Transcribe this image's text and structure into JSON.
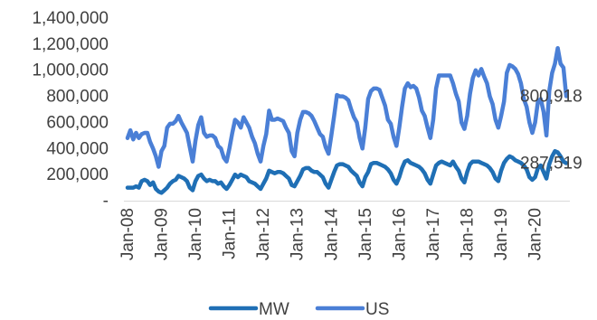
{
  "chart_data": {
    "type": "line",
    "title": "",
    "xlabel": "",
    "ylabel": "",
    "ylim": [
      0,
      1400000
    ],
    "y_ticks": [
      0,
      200000,
      400000,
      600000,
      800000,
      1000000,
      1200000,
      1400000
    ],
    "y_tick_labels": [
      "-",
      "200,000",
      "400,000",
      "600,000",
      "800,000",
      "1,000,000",
      "1,200,000",
      "1,400,000"
    ],
    "x_tick_labels": [
      "Jan-08",
      "Jan-09",
      "Jan-10",
      "Jan-11",
      "Jan-12",
      "Jan-13",
      "Jan-14",
      "Jan-15",
      "Jan-16",
      "Jan-17",
      "Jan-18",
      "Jan-19",
      "Jan-20"
    ],
    "x_start": "Jan-08",
    "x_end": "Dec-20",
    "grid": false,
    "legend_position": "bottom",
    "series": [
      {
        "name": "MW",
        "color": "#1f6fb5",
        "values": [
          100000,
          100000,
          100000,
          110000,
          100000,
          150000,
          160000,
          150000,
          120000,
          140000,
          90000,
          70000,
          60000,
          80000,
          100000,
          130000,
          150000,
          160000,
          190000,
          180000,
          170000,
          150000,
          100000,
          80000,
          150000,
          190000,
          200000,
          170000,
          150000,
          160000,
          150000,
          150000,
          130000,
          140000,
          110000,
          90000,
          120000,
          160000,
          200000,
          180000,
          200000,
          190000,
          180000,
          150000,
          140000,
          130000,
          110000,
          90000,
          130000,
          170000,
          230000,
          220000,
          210000,
          220000,
          220000,
          210000,
          190000,
          170000,
          120000,
          110000,
          150000,
          190000,
          240000,
          250000,
          250000,
          230000,
          220000,
          220000,
          200000,
          180000,
          130000,
          100000,
          160000,
          220000,
          270000,
          280000,
          280000,
          270000,
          260000,
          230000,
          210000,
          190000,
          140000,
          110000,
          180000,
          220000,
          280000,
          290000,
          290000,
          280000,
          270000,
          260000,
          240000,
          210000,
          160000,
          130000,
          180000,
          250000,
          300000,
          310000,
          290000,
          280000,
          270000,
          260000,
          240000,
          210000,
          160000,
          130000,
          200000,
          270000,
          290000,
          300000,
          290000,
          280000,
          270000,
          300000,
          260000,
          230000,
          170000,
          140000,
          220000,
          280000,
          300000,
          300000,
          300000,
          290000,
          280000,
          270000,
          250000,
          220000,
          170000,
          150000,
          230000,
          290000,
          320000,
          340000,
          330000,
          310000,
          300000,
          290000,
          270000,
          240000,
          180000,
          160000,
          180000,
          250000,
          270000,
          220000,
          170000,
          280000,
          340000,
          380000,
          370000,
          340000,
          300000,
          287519
        ]
      },
      {
        "name": "US",
        "color": "#4a7fd6",
        "values": [
          480000,
          540000,
          470000,
          520000,
          480000,
          510000,
          520000,
          520000,
          450000,
          400000,
          340000,
          260000,
          380000,
          420000,
          560000,
          590000,
          590000,
          610000,
          650000,
          600000,
          560000,
          520000,
          410000,
          300000,
          460000,
          580000,
          640000,
          520000,
          490000,
          500000,
          500000,
          480000,
          420000,
          400000,
          330000,
          300000,
          400000,
          520000,
          620000,
          600000,
          560000,
          640000,
          600000,
          560000,
          490000,
          440000,
          360000,
          300000,
          420000,
          510000,
          690000,
          620000,
          620000,
          630000,
          620000,
          610000,
          560000,
          520000,
          380000,
          340000,
          520000,
          620000,
          680000,
          680000,
          670000,
          650000,
          610000,
          560000,
          510000,
          490000,
          410000,
          360000,
          500000,
          650000,
          810000,
          800000,
          800000,
          790000,
          770000,
          700000,
          640000,
          600000,
          480000,
          400000,
          560000,
          780000,
          840000,
          860000,
          860000,
          850000,
          790000,
          730000,
          620000,
          590000,
          490000,
          420000,
          560000,
          720000,
          860000,
          900000,
          870000,
          880000,
          860000,
          790000,
          690000,
          650000,
          560000,
          480000,
          620000,
          860000,
          960000,
          960000,
          960000,
          960000,
          960000,
          900000,
          820000,
          760000,
          600000,
          550000,
          650000,
          820000,
          940000,
          1000000,
          960000,
          1010000,
          950000,
          900000,
          800000,
          740000,
          620000,
          560000,
          650000,
          760000,
          980000,
          1040000,
          1030000,
          1010000,
          970000,
          900000,
          780000,
          720000,
          600000,
          520000,
          600000,
          760000,
          780000,
          680000,
          500000,
          840000,
          980000,
          1050000,
          1170000,
          1050000,
          1020000,
          800918
        ]
      }
    ],
    "data_labels": [
      {
        "series": "US",
        "text": "800,918"
      },
      {
        "series": "MW",
        "text": "287,519"
      }
    ]
  }
}
